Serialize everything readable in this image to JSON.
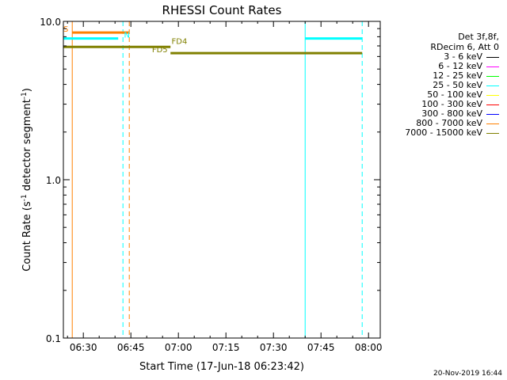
{
  "chart_data": {
    "type": "line",
    "title": "RHESSI Count Rates",
    "xlabel": "Start Time (17-Jun-18 06:23:42)",
    "ylabel_main": "Count Rate (s",
    "ylabel_sup1": "-1",
    "ylabel_mid": " detector segment",
    "ylabel_sup2": "-1",
    "ylabel_end": ")",
    "x_scale": "time",
    "x_start": "06:23:42",
    "xlim": [
      "06:23:42",
      "08:03:42"
    ],
    "y_scale": "log",
    "ylim": [
      0.1,
      10.0
    ],
    "grid": false,
    "x_ticks": [
      {
        "time": "06:30",
        "label": "06:30"
      },
      {
        "time": "06:45",
        "label": "06:45"
      },
      {
        "time": "07:00",
        "label": "07:00"
      },
      {
        "time": "07:15",
        "label": "07:15"
      },
      {
        "time": "07:30",
        "label": "07:30"
      },
      {
        "time": "07:45",
        "label": "07:45"
      },
      {
        "time": "08:00",
        "label": "08:00"
      }
    ],
    "y_ticks": [
      {
        "value": 0.1,
        "label": "0.1"
      },
      {
        "value": 1.0,
        "label": "1.0"
      },
      {
        "value": 10.0,
        "label": "10.0"
      }
    ],
    "series": [
      {
        "name": "25 - 50 keV",
        "color": "#00ffff",
        "segments": [
          {
            "x": [
              "06:23:42",
              "06:41:00"
            ],
            "y": 7.8
          },
          {
            "x": [
              "07:40:00",
              "07:58:00"
            ],
            "y": 7.8
          }
        ]
      },
      {
        "name": "800 - 7000 keV",
        "color": "#ff8000",
        "segments": [
          {
            "x": [
              "06:26:30",
              "06:44:30"
            ],
            "y": 8.5
          }
        ]
      },
      {
        "name": "7000 - 15000 keV",
        "color": "#808000",
        "segments": [
          {
            "x": [
              "06:23:42",
              "06:57:30"
            ],
            "y": 6.9
          },
          {
            "x": [
              "06:57:30",
              "07:58:00"
            ],
            "y": 6.3
          }
        ]
      }
    ],
    "vlines": [
      {
        "time": "06:23:42",
        "color": "#00ffff",
        "dash": false
      },
      {
        "time": "06:26:30",
        "color": "#ff8000",
        "dash": false
      },
      {
        "time": "06:42:30",
        "color": "#00ffff",
        "dash": true
      },
      {
        "time": "06:44:30",
        "color": "#ff8000",
        "dash": true
      },
      {
        "time": "07:40:00",
        "color": "#00ffff",
        "dash": false
      },
      {
        "time": "07:58:00",
        "color": "#00ffff",
        "dash": true
      }
    ],
    "annotations": [
      {
        "text": "S",
        "time": "06:23:42",
        "y": 8.5,
        "color": "#ff8000"
      },
      {
        "text": "N",
        "time": "06:42:50",
        "y": 7.8,
        "color": "#00ffff"
      },
      {
        "text": "FD4",
        "time": "06:57:50",
        "y": 7.1,
        "color": "#808000"
      },
      {
        "text": "FD5",
        "time": "06:51:40",
        "y": 6.3,
        "color": "#808000"
      }
    ],
    "legend": {
      "placement": "right",
      "header": [
        "Det 3f,8f,",
        "RDecim 6, Att 0"
      ],
      "entries": [
        {
          "label": "3 - 6 keV",
          "color": "#000000"
        },
        {
          "label": "6 - 12 keV",
          "color": "#ff00ff"
        },
        {
          "label": "12 - 25 keV",
          "color": "#00ff00"
        },
        {
          "label": "25 - 50 keV",
          "color": "#00ffff"
        },
        {
          "label": "50 - 100 keV",
          "color": "#ffff00"
        },
        {
          "label": "100 - 300 keV",
          "color": "#ff0000"
        },
        {
          "label": "300 - 800 keV",
          "color": "#0000ff"
        },
        {
          "label": "800 - 7000 keV",
          "color": "#ff8000"
        },
        {
          "label": "7000 - 15000 keV",
          "color": "#808000"
        }
      ]
    }
  },
  "footer_date": "20-Nov-2019 16:44"
}
